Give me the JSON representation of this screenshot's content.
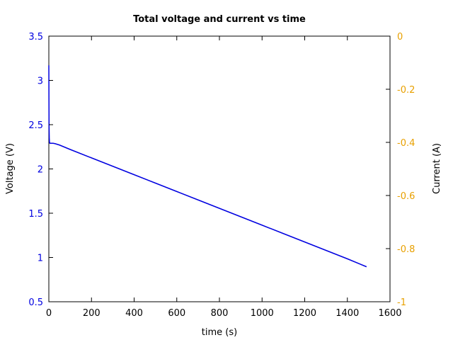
{
  "chart_data": {
    "type": "line",
    "title": "Total voltage and current vs time",
    "xlabel": "time (s)",
    "ylabel": "Voltage (V)",
    "y2label": "Current (A)",
    "xlim": [
      0,
      1600
    ],
    "ylim": [
      0.5,
      3.5
    ],
    "y2lim": [
      -1,
      0
    ],
    "grid": false,
    "x_ticks": [
      "0",
      "200",
      "400",
      "600",
      "800",
      "1000",
      "1200",
      "1400",
      "1600"
    ],
    "y_ticks": [
      "0.5",
      "1",
      "1.5",
      "2",
      "2.5",
      "3",
      "3.5"
    ],
    "y2_ticks": [
      "-1",
      "-0.8",
      "-0.6",
      "-0.4",
      "-0.2",
      "0"
    ],
    "colors": {
      "voltage": "#0000e0",
      "current": "#e8a000",
      "axes": "#000000"
    },
    "series": [
      {
        "axis": "left",
        "x": [
          0,
          0.5,
          1,
          2,
          3,
          5,
          10,
          20,
          30,
          50,
          100,
          200,
          300,
          400,
          500,
          600,
          700,
          800,
          900,
          1000,
          1100,
          1200,
          1300,
          1400,
          1490
        ],
        "y": [
          3.17,
          2.8,
          2.5,
          2.35,
          2.3,
          2.29,
          2.29,
          2.29,
          2.285,
          2.27,
          2.22,
          2.125,
          2.03,
          1.935,
          1.84,
          1.745,
          1.65,
          1.555,
          1.46,
          1.365,
          1.27,
          1.175,
          1.08,
          0.985,
          0.895
        ]
      }
    ]
  }
}
